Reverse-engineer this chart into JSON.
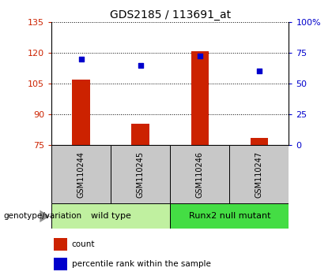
{
  "title": "GDS2185 / 113691_at",
  "samples": [
    "GSM110244",
    "GSM110245",
    "GSM110246",
    "GSM110247"
  ],
  "bar_values": [
    107.0,
    85.5,
    121.0,
    78.5
  ],
  "percentile_values": [
    70.0,
    65.0,
    72.5,
    60.5
  ],
  "ymin": 75,
  "ymax": 135,
  "yticks": [
    75,
    90,
    105,
    120,
    135
  ],
  "y2min": 0,
  "y2max": 100,
  "y2ticks": [
    0,
    25,
    50,
    75,
    100
  ],
  "bar_color": "#cc2200",
  "point_color": "#0000cc",
  "groups": [
    {
      "label": "wild type",
      "indices": [
        0,
        1
      ],
      "color": "#c0f0a0"
    },
    {
      "label": "Runx2 null mutant",
      "indices": [
        2,
        3
      ],
      "color": "#44dd44"
    }
  ],
  "group_label": "genotype/variation",
  "legend_items": [
    {
      "color": "#cc2200",
      "label": "count"
    },
    {
      "color": "#0000cc",
      "label": "percentile rank within the sample"
    }
  ],
  "title_color": "#000000",
  "left_tick_color": "#cc2200",
  "right_tick_color": "#0000cc",
  "sample_bg_color": "#c8c8c8",
  "plot_bg_color": "#ffffff",
  "bar_width": 0.3
}
